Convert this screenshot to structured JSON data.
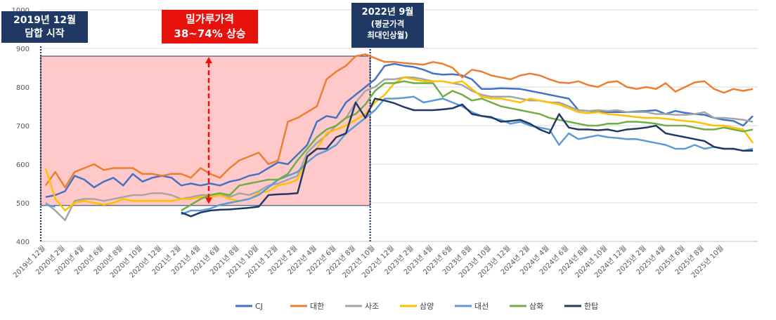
{
  "chart_data": {
    "type": "line",
    "yticks": [
      400,
      500,
      600,
      700,
      800,
      900,
      1000
    ],
    "ylim": [
      400,
      1000
    ],
    "xtick_labels": [
      "2019년 12월",
      "2020년 2월",
      "2020년 4월",
      "2020년 6월",
      "2020년 8월",
      "2020년 10월",
      "2020년 12월",
      "2021년 2월",
      "2021년 4월",
      "2021년 6월",
      "2021년 8월",
      "2021년 10월",
      "2021년 12월",
      "2022년 2월",
      "2022년 4월",
      "2022년 6월",
      "2022년 8월",
      "2022년 10월",
      "2022년 12월",
      "2023년 2월",
      "2023년 4월",
      "2023년 6월",
      "2023년 8월",
      "2023년 10월",
      "2023년 12월",
      "2024년 2월",
      "2024년 4월",
      "2024년 6월",
      "2024년 8월",
      "2024년 10월",
      "2024년 12월",
      "2025년 2월",
      "2025년 4월",
      "2025년 6월",
      "2025년 8월",
      "2025년 10월"
    ],
    "legend_position": "bottom",
    "grid": true,
    "series": [
      {
        "name": "CJ",
        "color": "#4472c4",
        "start": 0,
        "values": [
          515,
          520,
          530,
          570,
          560,
          540,
          555,
          565,
          545,
          575,
          555,
          565,
          570,
          565,
          545,
          550,
          545,
          550,
          545,
          555,
          560,
          570,
          575,
          590,
          605,
          600,
          625,
          650,
          710,
          725,
          720,
          760,
          780,
          800,
          820,
          855,
          860,
          855,
          852,
          845,
          835,
          832,
          833,
          830,
          820,
          795,
          795,
          797,
          796,
          795,
          790,
          785,
          780,
          775,
          770,
          740,
          738,
          737,
          735,
          735,
          735,
          737,
          738,
          740,
          730,
          738,
          733,
          730,
          728,
          720,
          715,
          712,
          700,
          725
        ]
      },
      {
        "name": "대한",
        "color": "#ed7d31",
        "start": 0,
        "values": [
          545,
          580,
          540,
          580,
          590,
          600,
          585,
          590,
          590,
          590,
          575,
          575,
          570,
          575,
          575,
          565,
          590,
          575,
          565,
          590,
          610,
          620,
          630,
          600,
          610,
          710,
          720,
          735,
          750,
          820,
          840,
          855,
          880,
          885,
          875,
          865,
          865,
          862,
          860,
          858,
          865,
          860,
          850,
          825,
          845,
          840,
          830,
          825,
          820,
          830,
          835,
          830,
          820,
          812,
          810,
          815,
          805,
          800,
          812,
          815,
          800,
          795,
          800,
          795,
          810,
          788,
          800,
          812,
          815,
          795,
          785,
          795,
          790,
          795
        ]
      },
      {
        "name": "사조",
        "color": "#a5a5a5",
        "start": 0,
        "values": [
          500,
          480,
          455,
          505,
          510,
          510,
          505,
          510,
          515,
          520,
          520,
          525,
          525,
          520,
          510,
          515,
          520,
          520,
          525,
          515,
          525,
          520,
          530,
          545,
          550,
          560,
          570,
          630,
          655,
          675,
          700,
          720,
          760,
          790,
          800,
          820,
          820,
          825,
          825,
          820,
          815,
          815,
          810,
          805,
          790,
          780,
          775,
          775,
          775,
          770,
          765,
          765,
          760,
          760,
          750,
          740,
          738,
          740,
          738,
          740,
          735,
          735,
          735,
          730,
          730,
          728,
          728,
          730,
          735,
          720,
          720,
          718,
          715,
          710
        ]
      },
      {
        "name": "삼양",
        "color": "#ffc000",
        "start": 0,
        "values": [
          590,
          510,
          480,
          500,
          505,
          500,
          495,
          500,
          510,
          505,
          505,
          505,
          505,
          505,
          510,
          510,
          515,
          515,
          520,
          510,
          505,
          510,
          525,
          530,
          545,
          550,
          560,
          620,
          640,
          680,
          690,
          700,
          715,
          730,
          760,
          780,
          810,
          825,
          820,
          815,
          815,
          815,
          810,
          815,
          795,
          775,
          770,
          770,
          765,
          760,
          770,
          765,
          760,
          755,
          745,
          735,
          732,
          735,
          730,
          728,
          725,
          722,
          720,
          720,
          718,
          715,
          712,
          710,
          705,
          700,
          700,
          695,
          690,
          655
        ]
      },
      {
        "name": "대선",
        "color": "#5b9bd5",
        "start": 0,
        "values": [
          495,
          490,
          null,
          null,
          null,
          null,
          null,
          null,
          null,
          null,
          null,
          null,
          null,
          null,
          470,
          480,
          480,
          485,
          495,
          500,
          505,
          510,
          520,
          540,
          560,
          570,
          580,
          605,
          625,
          635,
          650,
          680,
          700,
          720,
          740,
          770,
          770,
          772,
          775,
          760,
          765,
          770,
          760,
          750,
          735,
          725,
          720,
          715,
          705,
          710,
          700,
          695,
          690,
          650,
          680,
          665,
          670,
          675,
          670,
          668,
          665,
          665,
          660,
          655,
          650,
          640,
          640,
          650,
          640,
          645,
          640,
          640,
          635,
          640
        ]
      },
      {
        "name": "삼화",
        "color": "#70ad47",
        "start": 0,
        "values": [
          null,
          null,
          null,
          null,
          null,
          null,
          null,
          null,
          null,
          null,
          null,
          null,
          null,
          null,
          480,
          495,
          510,
          520,
          525,
          520,
          545,
          550,
          555,
          560,
          560,
          575,
          610,
          640,
          670,
          690,
          700,
          720,
          730,
          755,
          790,
          810,
          810,
          815,
          810,
          810,
          810,
          775,
          790,
          780,
          765,
          770,
          760,
          750,
          745,
          740,
          735,
          730,
          720,
          715,
          710,
          705,
          700,
          700,
          705,
          705,
          710,
          710,
          708,
          705,
          700,
          700,
          700,
          695,
          690,
          690,
          695,
          690,
          685,
          690
        ]
      },
      {
        "name": "한탑",
        "color": "#203864",
        "start": 0,
        "values": [
          null,
          null,
          null,
          null,
          null,
          null,
          null,
          null,
          null,
          null,
          null,
          null,
          null,
          null,
          475,
          465,
          475,
          480,
          482,
          483,
          485,
          487,
          490,
          520,
          522,
          523,
          525,
          620,
          640,
          640,
          670,
          680,
          760,
          720,
          770,
          765,
          758,
          748,
          740,
          740,
          740,
          742,
          745,
          755,
          730,
          725,
          722,
          710,
          712,
          715,
          705,
          690,
          680,
          730,
          695,
          690,
          690,
          688,
          690,
          685,
          690,
          692,
          695,
          700,
          680,
          675,
          670,
          665,
          660,
          645,
          640,
          640,
          635,
          635
        ]
      }
    ]
  },
  "annotations": {
    "box1": {
      "line1": "2019년 12월",
      "line2": "담합 시작",
      "color": "#1f3864"
    },
    "box2": {
      "line1": "밀가루가격",
      "line2": "38~74% 상승",
      "color": "#e8120c"
    },
    "box3": {
      "line1": "2022년 9월",
      "line2": "(평균가격",
      "line3": "최대인상월)",
      "color": "#1f3864"
    }
  }
}
